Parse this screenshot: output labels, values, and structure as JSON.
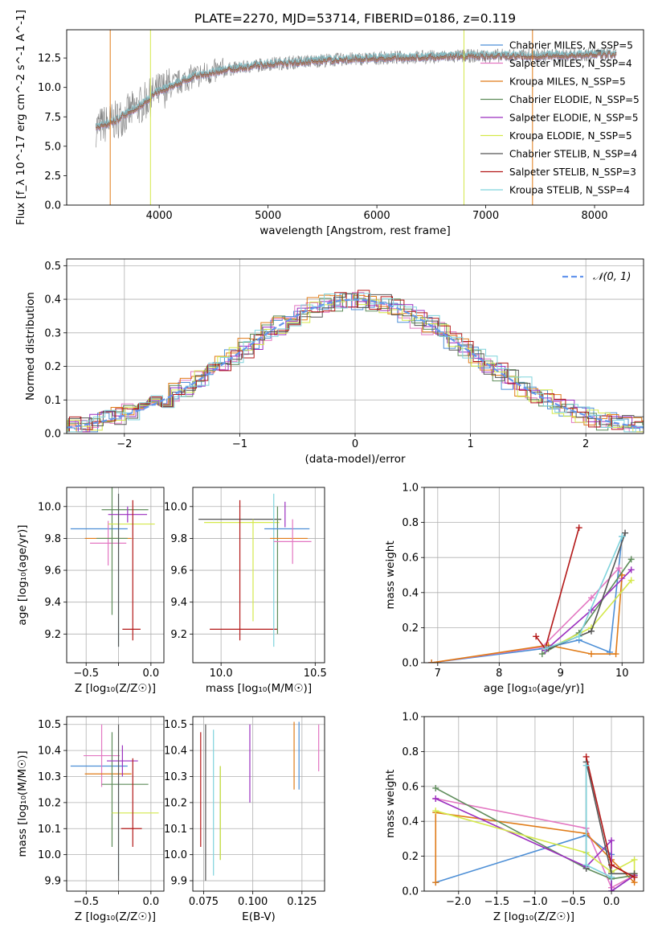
{
  "chart_data": [
    {
      "id": "spectrum",
      "type": "line",
      "title": "PLATE=2270, MJD=53714, FIBERID=0186, z=0.119",
      "xlabel": "wavelength [Angstrom, rest frame]",
      "ylabel": "Flux [f_λ 10^-17 erg cm^-2 s^-1 A^-1]",
      "xlim": [
        3150,
        8450
      ],
      "ylim": [
        0,
        14.9
      ],
      "xticks": [
        4000,
        5000,
        6000,
        7000,
        8000
      ],
      "yticks": [
        0.0,
        2.5,
        5.0,
        7.5,
        10.0,
        12.5
      ],
      "xtick_labels": [
        "4000",
        "5000",
        "6000",
        "7000",
        "8000"
      ],
      "ytick_labels": [
        "0.0",
        "2.5",
        "5.0",
        "7.5",
        "10.0",
        "12.5"
      ],
      "grid": false,
      "legend_position": "right",
      "continuum": {
        "x": [
          3420,
          3600,
          3800,
          4000,
          4300,
          4600,
          5000,
          5500,
          6000,
          6500,
          7000,
          7500,
          8000,
          8200
        ],
        "y": [
          6.6,
          7.2,
          8.3,
          9.7,
          10.9,
          11.5,
          12.0,
          12.3,
          12.5,
          12.6,
          12.7,
          12.7,
          12.8,
          12.8
        ]
      },
      "series": [
        {
          "name": "Chabrier MILES, N_SSP=5",
          "color": "#4d8fd6"
        },
        {
          "name": "Salpeter MILES, N_SSP=4",
          "color": "#e377c2"
        },
        {
          "name": "Kroupa MILES, N_SSP=5",
          "color": "#e07b17"
        },
        {
          "name": "Chabrier ELODIE, N_SSP=5",
          "color": "#5e8c5a"
        },
        {
          "name": "Salpeter ELODIE, N_SSP=5",
          "color": "#9b2fbf"
        },
        {
          "name": "Kroupa ELODIE, N_SSP=5",
          "color": "#d4e84a"
        },
        {
          "name": "Chabrier STELIB, N_SSP=4",
          "color": "#555555"
        },
        {
          "name": "Salpeter STELIB, N_SSP=3",
          "color": "#b31818"
        },
        {
          "name": "Kroupa STELIB, N_SSP=4",
          "color": "#7fd3dc"
        }
      ]
    },
    {
      "id": "residuals",
      "type": "line",
      "xlabel": "(data-model)/error",
      "ylabel": "Normed distribution",
      "xlim": [
        -2.5,
        2.5
      ],
      "ylim": [
        0,
        0.52
      ],
      "xticks": [
        -2,
        -1,
        0,
        1,
        2
      ],
      "yticks": [
        0.0,
        0.1,
        0.2,
        0.3,
        0.4,
        0.5
      ],
      "xtick_labels": [
        "−2",
        "−1",
        "0",
        "1",
        "2"
      ],
      "ytick_labels": [
        "0.0",
        "0.1",
        "0.2",
        "0.3",
        "0.4",
        "0.5"
      ],
      "grid": true,
      "legend": {
        "label": "𝒩(0, 1)",
        "position": "top-right"
      },
      "gaussian": {
        "mean": 0,
        "sigma": 1
      }
    },
    {
      "id": "age_vs_Z",
      "type": "scatter",
      "xlabel": "Z [log₁₀(Z/Z☉)]",
      "ylabel": "age  [log₁₀(age/yr)]",
      "xlim": [
        -0.65,
        0.1
      ],
      "ylim": [
        9.02,
        10.12
      ],
      "xticks": [
        -0.5,
        -0.25,
        0.0
      ],
      "yticks": [
        9.2,
        9.4,
        9.6,
        9.8,
        10.0
      ],
      "xtick_labels": [
        "−0.5",
        "",
        "0.0"
      ],
      "ytick_labels": [
        "9.2",
        "9.4",
        "9.6",
        "9.8",
        "10.0"
      ],
      "grid": true,
      "points": [
        {
          "x": -0.4,
          "xerr": 0.22,
          "y": 9.86,
          "yerr": 0.0,
          "color": "#4d8fd6"
        },
        {
          "x": -0.33,
          "xerr": 0.14,
          "y": 9.77,
          "yerr": 0.14,
          "color": "#e377c2"
        },
        {
          "x": -0.33,
          "xerr": 0.18,
          "y": 9.8,
          "yerr": 0.0,
          "color": "#e07b17"
        },
        {
          "x": -0.3,
          "xerr": 0.12,
          "y": 9.8,
          "yerr": 0.48,
          "color": "#5e8c5a"
        },
        {
          "x": -0.2,
          "xerr": 0.18,
          "y": 9.98,
          "yerr": 0.0,
          "color": "#5e8c5a"
        },
        {
          "x": -0.18,
          "xerr": 0.15,
          "y": 9.95,
          "yerr": 0.05,
          "color": "#9b2fbf"
        },
        {
          "x": -0.15,
          "xerr": 0.18,
          "y": 9.89,
          "yerr": 0.0,
          "color": "#d4e84a"
        },
        {
          "x": -0.25,
          "xerr": 0.0,
          "y": 9.6,
          "yerr": 0.48,
          "color": "#7fd3dc"
        },
        {
          "x": -0.25,
          "xerr": 0.0,
          "y": 9.6,
          "yerr": 0.48,
          "color": "#555555"
        },
        {
          "x": -0.15,
          "xerr": 0.07,
          "y": 9.23,
          "yerr": 0.0,
          "color": "#b31818"
        },
        {
          "x": -0.14,
          "xerr": 0.0,
          "y": 9.6,
          "yerr": 0.44,
          "color": "#b31818"
        }
      ]
    },
    {
      "id": "age_vs_mass",
      "type": "scatter",
      "xlabel": "mass [log₁₀(M/M☉)]",
      "xlim": [
        9.85,
        10.55
      ],
      "ylim": [
        9.02,
        10.12
      ],
      "xticks": [
        10.0,
        10.5
      ],
      "yticks": [
        9.2,
        9.4,
        9.6,
        9.8,
        10.0
      ],
      "xtick_labels": [
        "10.0",
        "10.5"
      ],
      "ytick_labels": [
        "9.2",
        "9.4",
        "9.6",
        "9.8",
        "10.0"
      ],
      "grid": true,
      "points": [
        {
          "x": 10.1,
          "xerr": 0.22,
          "y": 9.92,
          "yerr": 0.0,
          "color": "#555555"
        },
        {
          "x": 10.11,
          "xerr": 0.2,
          "y": 9.9,
          "yerr": 0.0,
          "color": "#d4e84a"
        },
        {
          "x": 10.17,
          "xerr": 0.0,
          "y": 9.6,
          "yerr": 0.32,
          "color": "#d4e84a"
        },
        {
          "x": 10.12,
          "xerr": 0.18,
          "y": 9.23,
          "yerr": 0.0,
          "color": "#b31818"
        },
        {
          "x": 10.1,
          "xerr": 0.0,
          "y": 9.6,
          "yerr": 0.44,
          "color": "#b31818"
        },
        {
          "x": 10.28,
          "xerr": 0.0,
          "y": 9.6,
          "yerr": 0.48,
          "color": "#7fd3dc"
        },
        {
          "x": 10.3,
          "xerr": 0.0,
          "y": 9.6,
          "yerr": 0.4,
          "color": "#5e8c5a"
        },
        {
          "x": 10.35,
          "xerr": 0.12,
          "y": 9.86,
          "yerr": 0.0,
          "color": "#4d8fd6"
        },
        {
          "x": 10.36,
          "xerr": 0.1,
          "y": 9.8,
          "yerr": 0.0,
          "color": "#e07b17"
        },
        {
          "x": 10.38,
          "xerr": 0.1,
          "y": 9.78,
          "yerr": 0.14,
          "color": "#e377c2"
        },
        {
          "x": 10.34,
          "xerr": 0.0,
          "y": 9.95,
          "yerr": 0.08,
          "color": "#9b2fbf"
        }
      ]
    },
    {
      "id": "weight_vs_age",
      "type": "line",
      "xlabel": "age  [log₁₀(age/yr)]",
      "ylabel": "mass weight",
      "xlim": [
        6.78,
        10.35
      ],
      "ylim": [
        0,
        1.0
      ],
      "xticks": [
        7,
        8,
        9,
        10
      ],
      "yticks": [
        0.0,
        0.2,
        0.4,
        0.6,
        0.8,
        1.0
      ],
      "xtick_labels": [
        "7",
        "8",
        "9",
        "10"
      ],
      "ytick_labels": [
        "0.0",
        "0.2",
        "0.4",
        "0.6",
        "0.8",
        "1.0"
      ],
      "grid": true,
      "series": [
        {
          "color": "#4d8fd6",
          "x": [
            6.9,
            8.7,
            9.3,
            9.8,
            10.0
          ],
          "y": [
            0.0,
            0.08,
            0.13,
            0.06,
            0.72
          ]
        },
        {
          "color": "#e377c2",
          "x": [
            6.9,
            8.7,
            9.5,
            9.95,
            10.0
          ],
          "y": [
            0.0,
            0.09,
            0.37,
            0.54,
            0.48
          ]
        },
        {
          "color": "#e07b17",
          "x": [
            6.9,
            8.8,
            9.5,
            9.9,
            10.0
          ],
          "y": [
            0.0,
            0.1,
            0.05,
            0.05,
            0.5
          ]
        },
        {
          "color": "#5e8c5a",
          "x": [
            8.7,
            9.3,
            10.15
          ],
          "y": [
            0.05,
            0.17,
            0.59
          ]
        },
        {
          "color": "#9b2fbf",
          "x": [
            8.75,
            9.5,
            10.15
          ],
          "y": [
            0.07,
            0.3,
            0.53
          ]
        },
        {
          "color": "#d4e84a",
          "x": [
            8.8,
            9.5,
            10.15
          ],
          "y": [
            0.08,
            0.2,
            0.47
          ]
        },
        {
          "color": "#555555",
          "x": [
            8.8,
            9.5,
            10.05
          ],
          "y": [
            0.08,
            0.18,
            0.74
          ]
        },
        {
          "color": "#b31818",
          "x": [
            8.6,
            8.75,
            9.3
          ],
          "y": [
            0.15,
            0.08,
            0.77
          ]
        },
        {
          "color": "#7fd3dc",
          "x": [
            8.75,
            9.3,
            10.0
          ],
          "y": [
            0.08,
            0.15,
            0.72
          ]
        }
      ]
    },
    {
      "id": "mass_vs_Z",
      "type": "scatter",
      "xlabel": "Z [log₁₀(Z/Z☉)]",
      "ylabel": "mass [log₁₀(M/M☉)]",
      "xlim": [
        -0.65,
        0.1
      ],
      "ylim": [
        9.86,
        10.53
      ],
      "xticks": [
        -0.5,
        -0.25,
        0.0
      ],
      "yticks": [
        9.9,
        10.0,
        10.1,
        10.2,
        10.3,
        10.4,
        10.5
      ],
      "xtick_labels": [
        "−0.5",
        "",
        "0.0"
      ],
      "ytick_labels": [
        "9.9",
        "10.0",
        "10.1",
        "10.2",
        "10.3",
        "10.4",
        "10.5"
      ],
      "grid": true,
      "points": [
        {
          "x": -0.4,
          "xerr": 0.22,
          "y": 10.34,
          "yerr": 0.0,
          "color": "#4d8fd6"
        },
        {
          "x": -0.38,
          "xerr": 0.14,
          "y": 10.38,
          "yerr": 0.12,
          "color": "#e377c2"
        },
        {
          "x": -0.33,
          "xerr": 0.18,
          "y": 10.31,
          "yerr": 0.0,
          "color": "#e07b17"
        },
        {
          "x": -0.3,
          "xerr": 0.0,
          "y": 10.25,
          "yerr": 0.22,
          "color": "#5e8c5a"
        },
        {
          "x": -0.2,
          "xerr": 0.18,
          "y": 10.27,
          "yerr": 0.0,
          "color": "#5e8c5a"
        },
        {
          "x": -0.22,
          "xerr": 0.12,
          "y": 10.36,
          "yerr": 0.06,
          "color": "#9b2fbf"
        },
        {
          "x": -0.12,
          "xerr": 0.18,
          "y": 10.16,
          "yerr": 0.0,
          "color": "#d4e84a"
        },
        {
          "x": -0.25,
          "xerr": 0.0,
          "y": 10.1,
          "yerr": 0.18,
          "color": "#7fd3dc"
        },
        {
          "x": -0.25,
          "xerr": 0.0,
          "y": 10.2,
          "yerr": 0.3,
          "color": "#555555"
        },
        {
          "x": -0.15,
          "xerr": 0.08,
          "y": 10.1,
          "yerr": 0.0,
          "color": "#b31818"
        },
        {
          "x": -0.14,
          "xerr": 0.0,
          "y": 10.2,
          "yerr": 0.17,
          "color": "#b31818"
        }
      ]
    },
    {
      "id": "mass_vs_EBV",
      "type": "scatter",
      "xlabel": "E(B-V)",
      "xlim": [
        0.0695,
        0.1365
      ],
      "ylim": [
        9.86,
        10.53
      ],
      "xticks": [
        0.075,
        0.1,
        0.125
      ],
      "yticks": [
        9.9,
        10.0,
        10.1,
        10.2,
        10.3,
        10.4,
        10.5
      ],
      "xtick_labels": [
        "0.075",
        "0.100",
        "0.125"
      ],
      "ytick_labels": [
        "9.9",
        "10.0",
        "10.1",
        "10.2",
        "10.3",
        "10.4",
        "10.5"
      ],
      "grid": true,
      "points": [
        {
          "x": 0.0735,
          "xerr": 0,
          "y": 10.25,
          "yerr": 0.22,
          "color": "#b31818"
        },
        {
          "x": 0.076,
          "xerr": 0,
          "y": 10.2,
          "yerr": 0.3,
          "color": "#555555"
        },
        {
          "x": 0.08,
          "xerr": 0,
          "y": 10.2,
          "yerr": 0.28,
          "color": "#7fd3dc"
        },
        {
          "x": 0.0835,
          "xerr": 0,
          "y": 10.16,
          "yerr": 0.18,
          "color": "#5e8c5a"
        },
        {
          "x": 0.0835,
          "xerr": 0,
          "y": 10.16,
          "yerr": 0.18,
          "color": "#d4e84a"
        },
        {
          "x": 0.0985,
          "xerr": 0,
          "y": 10.35,
          "yerr": 0.15,
          "color": "#9b2fbf"
        },
        {
          "x": 0.121,
          "xerr": 0,
          "y": 10.38,
          "yerr": 0.13,
          "color": "#e07b17"
        },
        {
          "x": 0.1235,
          "xerr": 0,
          "y": 10.38,
          "yerr": 0.13,
          "color": "#4d8fd6"
        },
        {
          "x": 0.1335,
          "xerr": 0,
          "y": 10.41,
          "yerr": 0.09,
          "color": "#e377c2"
        }
      ]
    },
    {
      "id": "weight_vs_Z",
      "type": "line",
      "xlabel": "Z [log₁₀(Z/Z☉)]",
      "ylabel": "mass weight",
      "xlim": [
        -2.45,
        0.42
      ],
      "ylim": [
        0,
        1.0
      ],
      "xticks": [
        -2.0,
        -1.5,
        -1.0,
        -0.5,
        0.0
      ],
      "yticks": [
        0.0,
        0.2,
        0.4,
        0.6,
        0.8,
        1.0
      ],
      "xtick_labels": [
        "−2.0",
        "−1.5",
        "−1.0",
        "−0.5",
        "0.0"
      ],
      "ytick_labels": [
        "0.0",
        "0.2",
        "0.4",
        "0.6",
        "0.8",
        "1.0"
      ],
      "grid": true,
      "series": [
        {
          "color": "#4d8fd6",
          "x": [
            -2.3,
            -0.33,
            0.0,
            0.0,
            0.3
          ],
          "y": [
            0.05,
            0.32,
            0.21,
            0.0,
            0.09
          ]
        },
        {
          "color": "#e377c2",
          "x": [
            -2.3,
            -0.33,
            0.0,
            0.3
          ],
          "y": [
            0.53,
            0.36,
            0.02,
            0.09
          ]
        },
        {
          "color": "#e07b17",
          "x": [
            -2.3,
            -2.3,
            -0.33,
            0.0,
            0.3,
            0.3
          ],
          "y": [
            0.05,
            0.45,
            0.33,
            0.18,
            0.05,
            0.09
          ]
        },
        {
          "color": "#5e8c5a",
          "x": [
            -2.3,
            -0.33,
            0.0,
            0.3
          ],
          "y": [
            0.59,
            0.13,
            0.07,
            0.09
          ]
        },
        {
          "color": "#9b2fbf",
          "x": [
            -2.3,
            -0.33,
            0.0,
            0.0,
            0.3
          ],
          "y": [
            0.53,
            0.14,
            0.29,
            0.0,
            0.09
          ]
        },
        {
          "color": "#d4e84a",
          "x": [
            -2.3,
            -0.33,
            0.0,
            0.3,
            0.3
          ],
          "y": [
            0.46,
            0.22,
            0.11,
            0.18,
            0.1
          ]
        },
        {
          "color": "#555555",
          "x": [
            -0.33,
            -0.33,
            0.0,
            0.3
          ],
          "y": [
            0.13,
            0.74,
            0.1,
            0.1
          ]
        },
        {
          "color": "#b31818",
          "x": [
            -0.33,
            0.0,
            0.3
          ],
          "y": [
            0.77,
            0.15,
            0.08
          ]
        },
        {
          "color": "#7fd3dc",
          "x": [
            -0.33,
            -0.33,
            0.0
          ],
          "y": [
            0.72,
            0.15,
            0.08
          ]
        }
      ]
    }
  ]
}
